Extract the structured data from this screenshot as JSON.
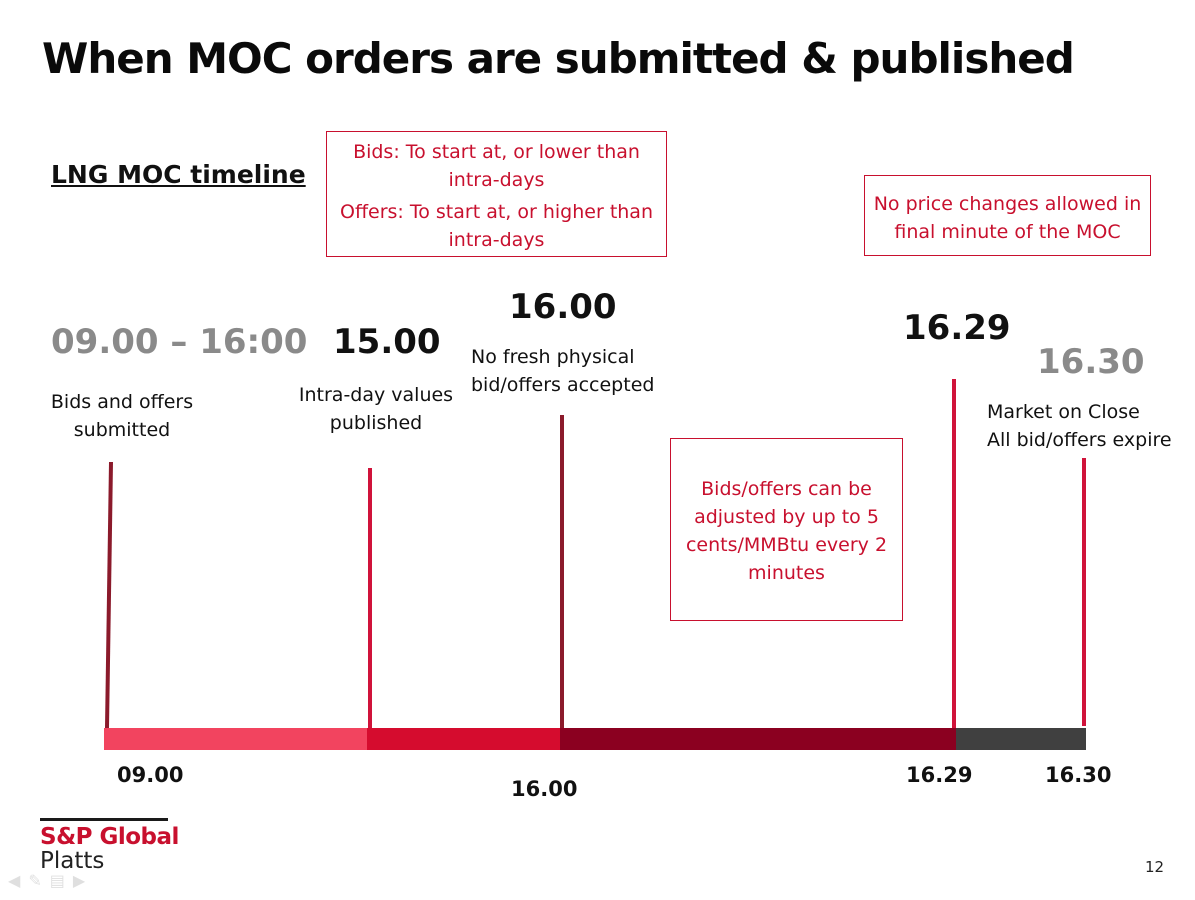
{
  "title": "When MOC orders are submitted & published",
  "subtitle": "LNG MOC timeline",
  "boxes": {
    "bids_offers": {
      "line1": "Bids: To start at, or lower than intra-days",
      "line2": "Offers: To start at, or higher than intra-days"
    },
    "no_price_changes": "No price changes allowed in final minute of the MOC",
    "adjustment": "Bids/offers can be adjusted by up to 5 cents/MMBtu every 2 minutes"
  },
  "events": [
    {
      "time": "09.00 – 16:00",
      "desc": "Bids and offers submitted"
    },
    {
      "time": "15.00",
      "desc": "Intra-day values published"
    },
    {
      "time": "16.00",
      "desc": "No fresh physical bid/offers accepted"
    },
    {
      "time": "16.29",
      "desc": ""
    },
    {
      "time": "16.30",
      "desc_line1": "Market on Close",
      "desc_line2": "All bid/offers expire"
    }
  ],
  "bar_labels": {
    "start": "09.00",
    "mid": "16.00",
    "moc_last": "16.29",
    "close": "16.30"
  },
  "colors": {
    "accent": "#c8102e",
    "segment1": "#f2445f",
    "segment2": "#d50c2e",
    "segment3": "#8b0020",
    "segment4": "#404040",
    "marker_dark": "#8b1a2b",
    "marker_red": "#d0133a"
  },
  "logo": {
    "brand": "S&P Global",
    "sub": "Platts"
  },
  "page_number": "12"
}
